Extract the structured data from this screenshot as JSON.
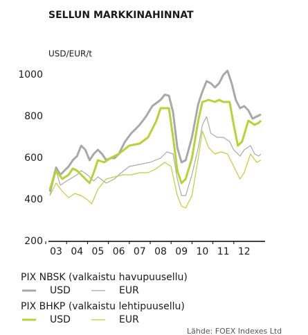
{
  "chart_data": {
    "type": "line",
    "title": "SELLUN MARKKINAHINNAT",
    "y_label": "USD/EUR/t",
    "xlim": [
      2.7,
      13.0
    ],
    "xticks": [
      {
        "value": 3,
        "label": "03"
      },
      {
        "value": 4,
        "label": "04"
      },
      {
        "value": 5,
        "label": "05"
      },
      {
        "value": 6,
        "label": "06"
      },
      {
        "value": 7,
        "label": "07"
      },
      {
        "value": 8,
        "label": "08"
      },
      {
        "value": 9,
        "label": "09"
      },
      {
        "value": 10,
        "label": "10"
      },
      {
        "value": 11,
        "label": "11"
      },
      {
        "value": 12,
        "label": "12"
      }
    ],
    "ylim": [
      200,
      1000
    ],
    "yticks": [
      200,
      400,
      600,
      800,
      1000
    ],
    "legend_groups": [
      "PIX NBSK (valkaistu havupuusellu)",
      "PIX BHKP (valkaistu lehtipuusellu)"
    ],
    "source": "Lähde: FOEX Indexes Ltd",
    "series": [
      {
        "name": "USD",
        "group": 0,
        "width": 3,
        "color": "#a8a8a8",
        "x": [
          2.7,
          3.0,
          3.2,
          3.4,
          3.6,
          3.8,
          4.0,
          4.2,
          4.4,
          4.6,
          4.8,
          5.0,
          5.2,
          5.4,
          5.6,
          5.8,
          6.0,
          6.3,
          6.6,
          7.0,
          7.3,
          7.6,
          8.0,
          8.2,
          8.4,
          8.6,
          8.8,
          9.0,
          9.2,
          9.5,
          9.8,
          10.0,
          10.2,
          10.4,
          10.6,
          10.8,
          11.0,
          11.2,
          11.4,
          11.6,
          11.8,
          12.0,
          12.2,
          12.4,
          12.6,
          12.8
        ],
        "values": [
          440,
          555,
          520,
          540,
          560,
          590,
          610,
          660,
          640,
          590,
          620,
          640,
          620,
          590,
          600,
          600,
          620,
          680,
          720,
          760,
          800,
          850,
          880,
          905,
          900,
          820,
          650,
          580,
          590,
          700,
          860,
          920,
          970,
          960,
          940,
          960,
          1000,
          1020,
          960,
          880,
          840,
          850,
          830,
          790,
          800,
          810
        ]
      },
      {
        "name": "EUR",
        "group": 0,
        "width": 1.2,
        "color": "#a8a8a8",
        "x": [
          2.7,
          3.0,
          3.2,
          3.5,
          4.0,
          4.2,
          4.5,
          4.8,
          5.0,
          5.4,
          5.8,
          6.0,
          6.5,
          7.0,
          7.5,
          8.0,
          8.3,
          8.6,
          8.8,
          9.0,
          9.2,
          9.5,
          9.8,
          10.0,
          10.2,
          10.4,
          10.7,
          11.0,
          11.3,
          11.5,
          11.8,
          12.0,
          12.3,
          12.5,
          12.7,
          12.8
        ],
        "values": [
          420,
          540,
          470,
          490,
          520,
          540,
          520,
          490,
          510,
          480,
          500,
          520,
          560,
          570,
          580,
          600,
          630,
          620,
          500,
          420,
          420,
          520,
          650,
          760,
          800,
          720,
          700,
          700,
          680,
          640,
          610,
          640,
          660,
          620,
          610,
          620
        ]
      },
      {
        "name": "USD",
        "group": 1,
        "width": 3,
        "color": "#b5d334",
        "x": [
          2.7,
          3.0,
          3.3,
          3.6,
          3.8,
          4.0,
          4.2,
          4.4,
          4.6,
          4.8,
          5.0,
          5.3,
          5.6,
          6.0,
          6.5,
          7.0,
          7.4,
          7.8,
          8.0,
          8.4,
          8.6,
          8.8,
          9.0,
          9.2,
          9.5,
          9.8,
          10.0,
          10.3,
          10.6,
          10.8,
          11.0,
          11.3,
          11.5,
          11.7,
          11.9,
          12.2,
          12.5,
          12.7,
          12.8
        ],
        "values": [
          450,
          540,
          500,
          520,
          550,
          540,
          520,
          500,
          480,
          530,
          590,
          580,
          600,
          620,
          660,
          670,
          700,
          780,
          840,
          840,
          700,
          540,
          480,
          500,
          600,
          780,
          870,
          880,
          870,
          880,
          870,
          870,
          760,
          660,
          680,
          780,
          760,
          770,
          780
        ]
      },
      {
        "name": "EUR",
        "group": 1,
        "width": 1.2,
        "color": "#b5d334",
        "x": [
          2.7,
          3.0,
          3.3,
          3.6,
          3.9,
          4.2,
          4.5,
          4.7,
          5.0,
          5.4,
          5.8,
          6.2,
          6.6,
          7.0,
          7.4,
          7.8,
          8.2,
          8.5,
          8.8,
          9.0,
          9.2,
          9.5,
          9.8,
          10.0,
          10.3,
          10.6,
          10.9,
          11.2,
          11.5,
          11.8,
          12.0,
          12.3,
          12.6,
          12.8
        ],
        "values": [
          420,
          480,
          440,
          410,
          430,
          420,
          400,
          380,
          450,
          500,
          510,
          520,
          520,
          530,
          530,
          550,
          580,
          560,
          420,
          370,
          360,
          420,
          600,
          730,
          650,
          620,
          630,
          620,
          560,
          500,
          530,
          620,
          580,
          590
        ]
      }
    ]
  }
}
